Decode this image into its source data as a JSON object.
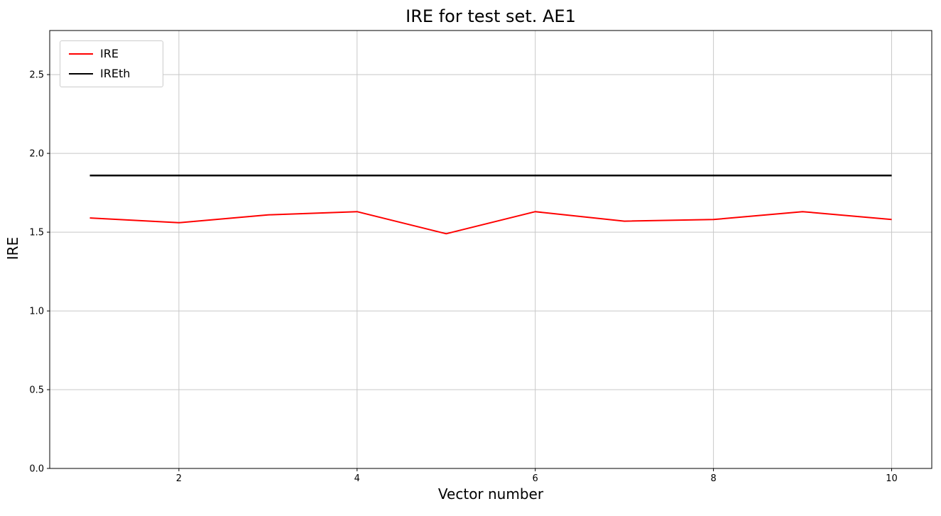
{
  "chart_data": {
    "type": "line",
    "title": "IRE for test set. AE1",
    "xlabel": "Vector number",
    "ylabel": "IRE",
    "x": [
      1,
      2,
      3,
      4,
      5,
      6,
      7,
      8,
      9,
      10
    ],
    "series": [
      {
        "name": "IRE",
        "color": "#ff0000",
        "linewidth": 2,
        "values": [
          1.59,
          1.56,
          1.61,
          1.63,
          1.49,
          1.63,
          1.57,
          1.58,
          1.63,
          1.58
        ]
      },
      {
        "name": "IREth",
        "color": "#000000",
        "linewidth": 2.5,
        "values": [
          1.86,
          1.86,
          1.86,
          1.86,
          1.86,
          1.86,
          1.86,
          1.86,
          1.86,
          1.86
        ]
      }
    ],
    "xlim": [
      0.55,
      10.45
    ],
    "ylim": [
      0,
      2.78
    ],
    "xticks": [
      2,
      4,
      6,
      8,
      10
    ],
    "yticks": [
      0.0,
      0.5,
      1.0,
      1.5,
      2.0,
      2.5
    ],
    "grid": true,
    "grid_color": "#c8c8c8",
    "legend_position": "upper left"
  }
}
